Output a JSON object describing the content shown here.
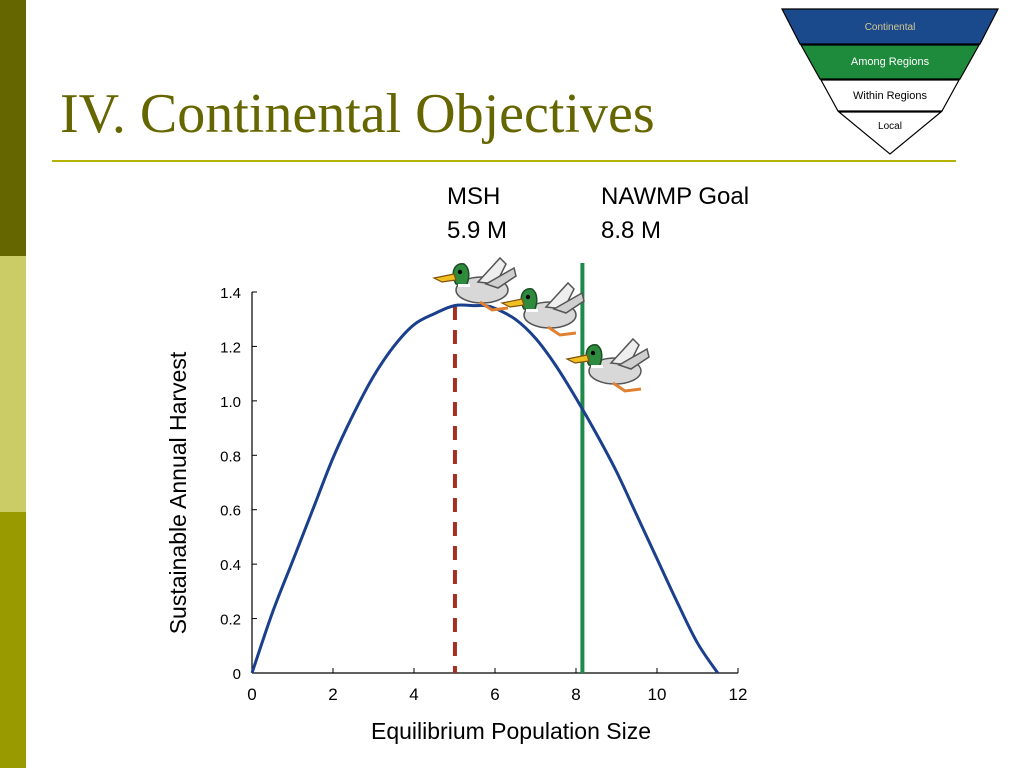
{
  "slide": {
    "title": "IV. Continental Objectives"
  },
  "pyramid": {
    "levels": [
      {
        "label": "Continental",
        "color": "#1a4a8c"
      },
      {
        "label": "Among Regions",
        "color": "#1e8a3c"
      },
      {
        "label": "Within Regions",
        "color": "#ffffff"
      },
      {
        "label": "Local",
        "color": "#ffffff"
      }
    ]
  },
  "annotations": {
    "msh_label": "MSH",
    "msh_value": "5.9 M",
    "goal_label": "NAWMP Goal",
    "goal_value": "8.8 M"
  },
  "chart_data": {
    "type": "line",
    "xlabel": "Equilibrium Population Size",
    "ylabel": "Sustainable Annual Harvest",
    "xlim": [
      0,
      12
    ],
    "ylim": [
      0,
      1.4
    ],
    "x_ticks": [
      "0",
      "2",
      "4",
      "6",
      "8",
      "10",
      "12"
    ],
    "y_ticks": [
      "0",
      "0.2",
      "0.4",
      "0.6",
      "0.8",
      "1.0",
      "1.2",
      "1.4"
    ],
    "grid": false,
    "series": [
      {
        "x": [
          0,
          0.5,
          1,
          1.5,
          2,
          2.5,
          3,
          3.5,
          4,
          4.5,
          5,
          5.5,
          5.75,
          6,
          6.5,
          7,
          7.5,
          8,
          8.5,
          9,
          9.5,
          10,
          10.5,
          11,
          11.5
        ],
        "y": [
          0,
          0.22,
          0.41,
          0.6,
          0.79,
          0.95,
          1.09,
          1.2,
          1.28,
          1.32,
          1.35,
          1.35,
          1.35,
          1.34,
          1.3,
          1.23,
          1.13,
          1.01,
          0.88,
          0.74,
          0.58,
          0.42,
          0.26,
          0.11,
          0
        ],
        "color": "#1a3f8c"
      }
    ],
    "reference_lines": [
      {
        "x": 5.9,
        "style": "dashed",
        "color": "#a33020"
      },
      {
        "x": 8.8,
        "style": "solid",
        "color": "#1e8a4a"
      }
    ]
  }
}
